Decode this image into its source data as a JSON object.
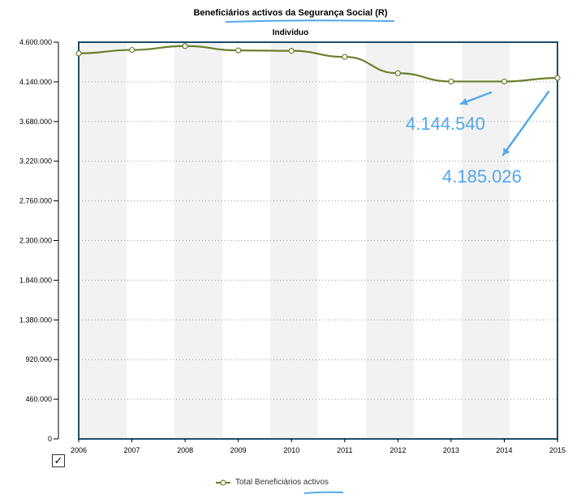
{
  "chart_data": {
    "type": "line",
    "title": "Beneficiários activos da Segurança Social (R)",
    "subtitle": "Indivíduo",
    "categories": [
      "2006",
      "2007",
      "2008",
      "2009",
      "2010",
      "2011",
      "2012",
      "2013",
      "2014",
      "2015"
    ],
    "series": [
      {
        "name": "Total Beneficiários activos",
        "color": "#6b7f2a",
        "values": [
          4470000,
          4510000,
          4555000,
          4505000,
          4500000,
          4430000,
          4240000,
          4144540,
          4144540,
          4185026
        ]
      }
    ],
    "ylim": [
      0,
      4600000
    ],
    "yticks": [
      "0",
      "460.000",
      "920.000",
      "1.380.000",
      "1.840.000",
      "2.300.000",
      "2.760.000",
      "3.220.000",
      "3.680.000",
      "4.140.000",
      "4.600.000"
    ],
    "grid": true,
    "legend_position": "bottom",
    "annotations": [
      "4.144.540",
      "4.185.026"
    ]
  },
  "colors": {
    "plot_border": "#1b4f6a",
    "band": "#f2f2f2",
    "annotation": "#52a8ec"
  },
  "icons": {
    "checkbox": "checkbox-checked-icon"
  }
}
